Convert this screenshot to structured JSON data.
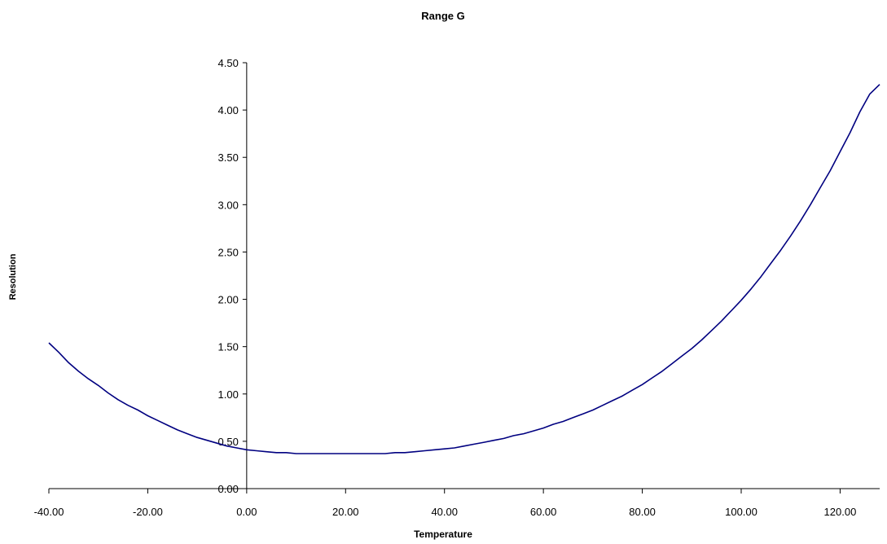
{
  "chart_data": {
    "type": "line",
    "title": "Range G",
    "xlabel": "Temperature",
    "ylabel": "Resolution",
    "xlim": [
      -40,
      128
    ],
    "ylim": [
      0,
      4.5
    ],
    "x_ticks": [
      "-40.00",
      "-20.00",
      "0.00",
      "20.00",
      "40.00",
      "60.00",
      "80.00",
      "100.00",
      "120.00"
    ],
    "y_ticks": [
      "0.00",
      "0.50",
      "1.00",
      "1.50",
      "2.00",
      "2.50",
      "3.00",
      "3.50",
      "4.00",
      "4.50"
    ],
    "grid": false,
    "legend": "none",
    "series": [
      {
        "color": "#000080",
        "x": [
          -40,
          -38,
          -36,
          -34,
          -32,
          -30,
          -28,
          -26,
          -24,
          -22,
          -20,
          -18,
          -16,
          -14,
          -12,
          -10,
          -8,
          -6,
          -4,
          -2,
          0,
          2,
          4,
          6,
          8,
          10,
          12,
          14,
          16,
          18,
          20,
          22,
          24,
          26,
          28,
          30,
          32,
          34,
          36,
          38,
          40,
          42,
          44,
          46,
          48,
          50,
          52,
          54,
          56,
          58,
          60,
          62,
          64,
          66,
          68,
          70,
          72,
          74,
          76,
          78,
          80,
          82,
          84,
          86,
          88,
          90,
          92,
          94,
          96,
          98,
          100,
          102,
          104,
          106,
          108,
          110,
          112,
          114,
          116,
          118,
          120,
          122,
          124,
          126,
          128
        ],
        "y": [
          1.54,
          1.44,
          1.33,
          1.24,
          1.16,
          1.09,
          1.01,
          0.94,
          0.88,
          0.83,
          0.77,
          0.72,
          0.67,
          0.62,
          0.58,
          0.54,
          0.51,
          0.48,
          0.45,
          0.43,
          0.41,
          0.4,
          0.39,
          0.38,
          0.38,
          0.37,
          0.37,
          0.37,
          0.37,
          0.37,
          0.37,
          0.37,
          0.37,
          0.37,
          0.37,
          0.38,
          0.38,
          0.39,
          0.4,
          0.41,
          0.42,
          0.43,
          0.45,
          0.47,
          0.49,
          0.51,
          0.53,
          0.56,
          0.58,
          0.61,
          0.64,
          0.68,
          0.71,
          0.75,
          0.79,
          0.83,
          0.88,
          0.93,
          0.98,
          1.04,
          1.1,
          1.17,
          1.24,
          1.32,
          1.4,
          1.48,
          1.57,
          1.67,
          1.77,
          1.88,
          1.99,
          2.11,
          2.24,
          2.38,
          2.52,
          2.67,
          2.83,
          3.0,
          3.18,
          3.36,
          3.56,
          3.76,
          3.98,
          4.17,
          4.27
        ]
      }
    ]
  }
}
